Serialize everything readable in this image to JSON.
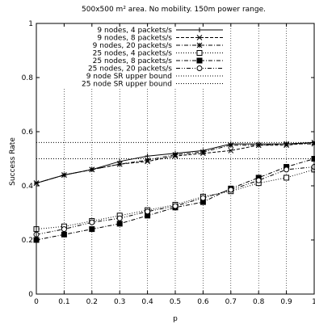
{
  "chart_data": {
    "type": "line",
    "title": "500x500 m² area. No mobility. 150m power range.",
    "xlabel": "p",
    "ylabel": "Success Rate",
    "xlim": [
      0,
      1
    ],
    "ylim": [
      0,
      1
    ],
    "xticks": [
      "0",
      "0.1",
      "0.2",
      "0.3",
      "0.4",
      "0.5",
      "0.6",
      "0.7",
      "0.8",
      "0.9",
      "1"
    ],
    "yticks": [
      "0",
      "0.2",
      "0.4",
      "0.6",
      "0.8",
      "1"
    ],
    "grid": "vertical dotted lines",
    "legend_position": "top-left",
    "x": [
      0,
      0.1,
      0.2,
      0.3,
      0.4,
      0.5,
      0.6,
      0.7,
      0.8,
      0.9,
      1
    ],
    "series": [
      {
        "name": "9 nodes, 4 packets/s",
        "marker": "plus",
        "dash": "solid",
        "values": [
          0.41,
          0.44,
          0.46,
          0.49,
          0.51,
          0.52,
          0.53,
          0.555,
          0.555,
          0.555,
          0.56
        ]
      },
      {
        "name": "9 nodes, 8 packets/s",
        "marker": "cross",
        "dash": "dashed",
        "values": [
          0.41,
          0.44,
          0.46,
          0.48,
          0.49,
          0.51,
          0.52,
          0.53,
          0.55,
          0.55,
          0.56
        ]
      },
      {
        "name": "9 nodes, 20 packets/s",
        "marker": "star",
        "dash": "dashdot",
        "values": [
          0.41,
          0.44,
          0.46,
          0.48,
          0.495,
          0.515,
          0.525,
          0.55,
          0.55,
          0.555,
          0.555
        ]
      },
      {
        "name": "25 nodes, 4 packets/s",
        "marker": "open-square",
        "dash": "dotted",
        "values": [
          0.24,
          0.25,
          0.27,
          0.29,
          0.31,
          0.33,
          0.36,
          0.38,
          0.41,
          0.43,
          0.46
        ]
      },
      {
        "name": "25 nodes, 8 packets/s",
        "marker": "filled-square",
        "dash": "dashdot",
        "values": [
          0.2,
          0.22,
          0.24,
          0.26,
          0.29,
          0.32,
          0.34,
          0.39,
          0.43,
          0.47,
          0.5
        ]
      },
      {
        "name": "25 nodes, 20 packets/s",
        "marker": "open-circle",
        "dash": "dashdotdot",
        "values": [
          0.22,
          0.24,
          0.265,
          0.28,
          0.305,
          0.325,
          0.355,
          0.385,
          0.42,
          0.46,
          0.47
        ]
      },
      {
        "name": "9 node SR upper bound",
        "marker": "none",
        "dash": "dotted",
        "values": [
          0.56,
          0.56,
          0.56,
          0.56,
          0.56,
          0.56,
          0.56,
          0.56,
          0.56,
          0.56,
          0.56
        ]
      },
      {
        "name": "25 node SR upper bound",
        "marker": "none",
        "dash": "dotted",
        "values": [
          0.5,
          0.5,
          0.5,
          0.5,
          0.5,
          0.5,
          0.5,
          0.5,
          0.5,
          0.5,
          0.5
        ]
      }
    ]
  }
}
